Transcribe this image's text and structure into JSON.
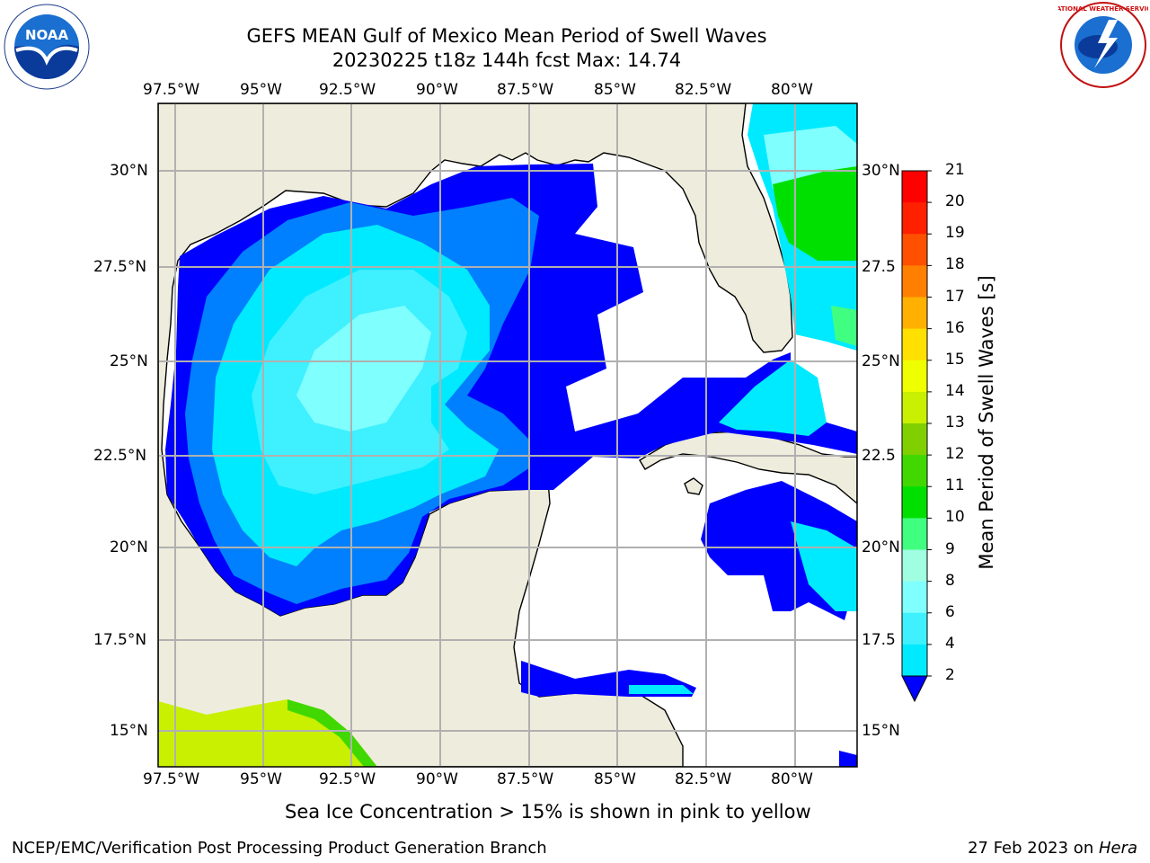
{
  "title": {
    "line1": "GEFS MEAN Gulf of Mexico Mean Period of Swell Waves",
    "line2": "20230225 t18z 144h fcst   Max: 14.74"
  },
  "lon_ticks": [
    "97.5°W",
    "95°W",
    "92.5°W",
    "90°W",
    "87.5°W",
    "85°W",
    "82.5°W",
    "80°W"
  ],
  "lat_ticks": [
    "30°N",
    "27.5°N",
    "25°N",
    "22.5°N",
    "20°N",
    "17.5°N",
    "15°N"
  ],
  "lat_ticks_right": [
    "30°N",
    "27.5",
    "25°N",
    "22.5",
    "20°N",
    "17.5",
    "15°N"
  ],
  "colorbar": {
    "label": "Mean Period of Swell Waves [s]",
    "ticks": [
      "21",
      "20",
      "19",
      "18",
      "17",
      "16",
      "15",
      "14",
      "13",
      "12",
      "11",
      "10",
      "9",
      "8",
      "6",
      "4",
      "2"
    ],
    "colors": [
      "#0000ff",
      "#0080ff",
      "#00eaff",
      "#3ff0ff",
      "#80ffff",
      "#a0ffe0",
      "#40ff80",
      "#00e000",
      "#40d800",
      "#80d000",
      "#c8f000",
      "#f0ff00",
      "#ffe000",
      "#ffb000",
      "#ff8000",
      "#ff5000",
      "#ff2000",
      "#ff0000"
    ]
  },
  "footer": {
    "sea_ice_note": "Sea Ice Concentration > 15% is shown in pink to yellow",
    "branch": "NCEP/EMC/Verification Post Processing Product Generation Branch",
    "date_prefix": "27 Feb 2023 on ",
    "host": "Hera"
  },
  "logos": {
    "noaa_text": "NOAA",
    "nws_text": "NATIONAL WEATHER SERVICE"
  },
  "colors": {
    "land": "#eeecdc",
    "ocean_white": "#ffffff",
    "grid": "#b0b0b0"
  }
}
